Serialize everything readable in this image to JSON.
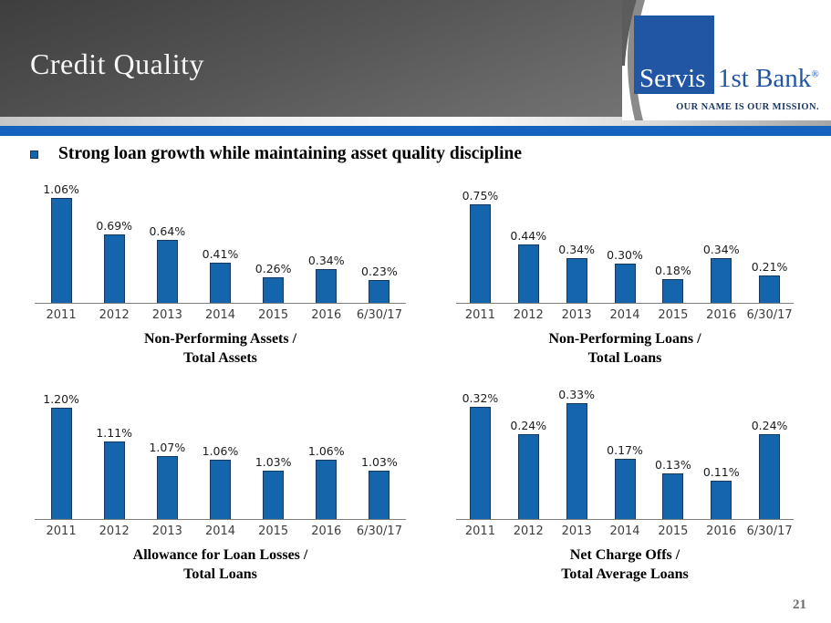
{
  "slide": {
    "title": "Credit Quality",
    "bullet_text": "Strong loan growth while maintaining asset quality discipline",
    "page_number": "21"
  },
  "logo": {
    "brand_part1": "Servis",
    "brand_part2": "1st Bank",
    "registered_mark": "®",
    "tagline": "OUR NAME IS OUR MISSION."
  },
  "colors": {
    "bar_fill": "#1565AC",
    "bar_border": "#16375E",
    "accent_bar": "#1464BE",
    "logo_blue": "#2156A5",
    "tagline_navy": "#1B3764"
  },
  "chart_data": [
    {
      "type": "bar",
      "title_line1": "Non-Performing Assets /",
      "title_line2": "Total Assets",
      "categories": [
        "2011",
        "2012",
        "2013",
        "2014",
        "2015",
        "2016",
        "6/30/17"
      ],
      "values": [
        1.06,
        0.69,
        0.64,
        0.41,
        0.26,
        0.34,
        0.23
      ],
      "labels": [
        "1.06%",
        "0.69%",
        "0.64%",
        "0.41%",
        "0.26%",
        "0.34%",
        "0.23%"
      ],
      "ylim": [
        0,
        1.2
      ],
      "grid": false,
      "legend": false
    },
    {
      "type": "bar",
      "title_line1": "Non-Performing Loans /",
      "title_line2": "Total Loans",
      "categories": [
        "2011",
        "2012",
        "2013",
        "2014",
        "2015",
        "2016",
        "6/30/17"
      ],
      "values": [
        0.75,
        0.44,
        0.34,
        0.3,
        0.18,
        0.34,
        0.21
      ],
      "labels": [
        "0.75%",
        "0.44%",
        "0.34%",
        "0.30%",
        "0.18%",
        "0.34%",
        "0.21%"
      ],
      "ylim": [
        0,
        0.9
      ],
      "grid": false,
      "legend": false
    },
    {
      "type": "bar",
      "title_line1": "Allowance for Loan Losses /",
      "title_line2": "Total Loans",
      "categories": [
        "2011",
        "2012",
        "2013",
        "2014",
        "2015",
        "2016",
        "6/30/17"
      ],
      "values": [
        1.2,
        1.11,
        1.07,
        1.06,
        1.03,
        1.06,
        1.03
      ],
      "labels": [
        "1.20%",
        "1.11%",
        "1.07%",
        "1.06%",
        "1.03%",
        "1.06%",
        "1.03%"
      ],
      "ylim": [
        0.9,
        1.22
      ],
      "grid": false,
      "legend": false
    },
    {
      "type": "bar",
      "title_line1": "Net Charge Offs /",
      "title_line2": "Total Average Loans",
      "categories": [
        "2011",
        "2012",
        "2013",
        "2014",
        "2015",
        "2016",
        "6/30/17"
      ],
      "values": [
        0.32,
        0.24,
        0.33,
        0.17,
        0.13,
        0.11,
        0.24
      ],
      "labels": [
        "0.32%",
        "0.24%",
        "0.33%",
        "0.17%",
        "0.13%",
        "0.11%",
        "0.24%"
      ],
      "ylim": [
        0,
        0.35
      ],
      "grid": false,
      "legend": false
    }
  ]
}
